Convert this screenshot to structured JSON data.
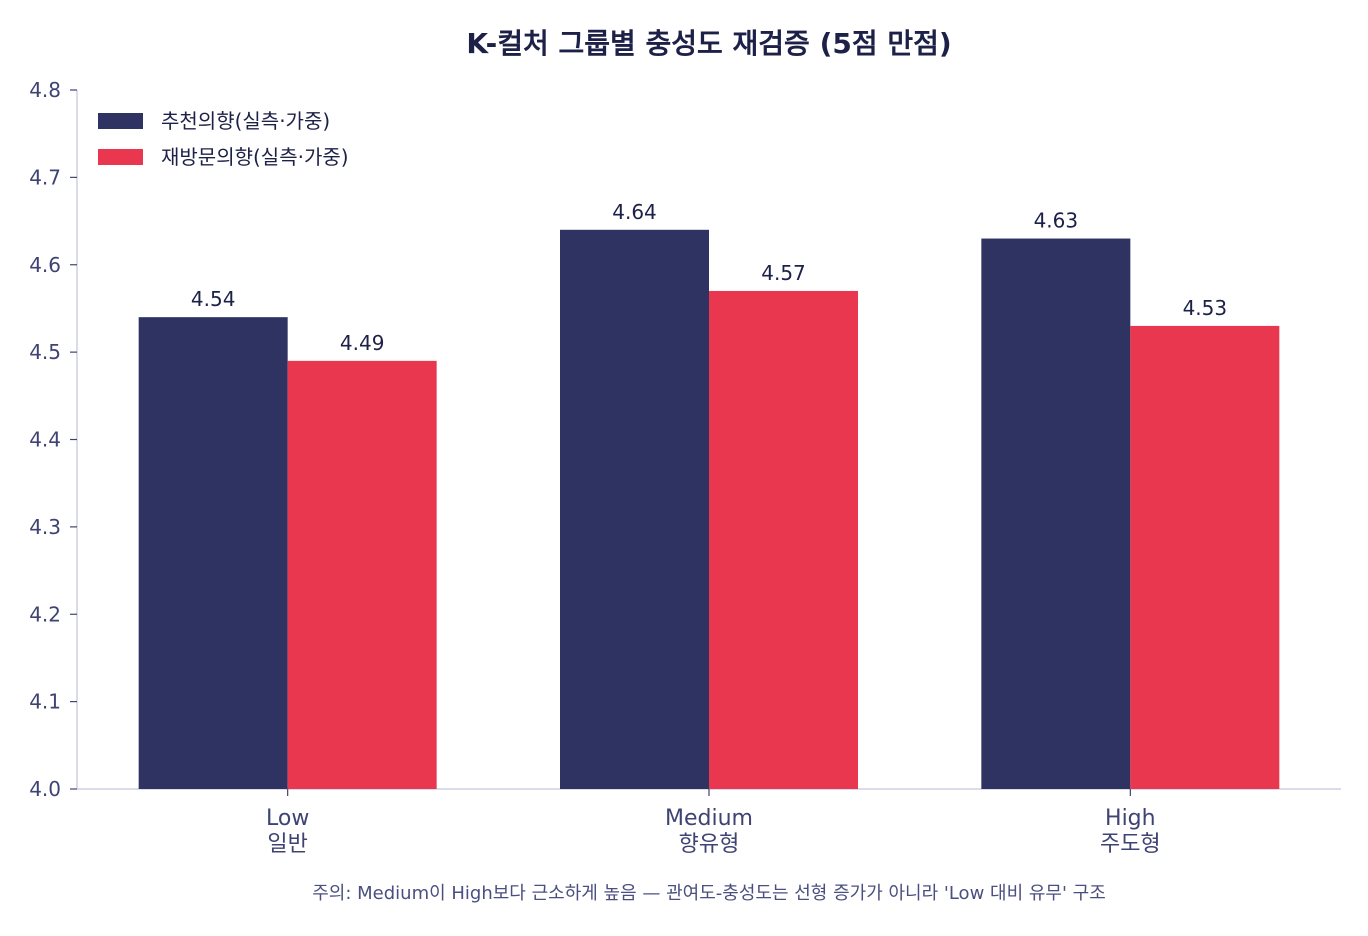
{
  "chart_data": {
    "type": "bar",
    "title": "K-컬처 그룹별 충성도 재검증 (5점 만점)",
    "categories": [
      {
        "en": "Low",
        "ko": "일반"
      },
      {
        "en": "Medium",
        "ko": "향유형"
      },
      {
        "en": "High",
        "ko": "주도형"
      }
    ],
    "series": [
      {
        "name": "추천의향(실측·가중)",
        "color": "#2e3362",
        "values": [
          4.54,
          4.64,
          4.63
        ],
        "labels": [
          "4.54",
          "4.64",
          "4.63"
        ]
      },
      {
        "name": "재방문의향(실측·가중)",
        "color": "#e8374e",
        "values": [
          4.49,
          4.57,
          4.53
        ],
        "labels": [
          "4.49",
          "4.57",
          "4.53"
        ]
      }
    ],
    "ylim": [
      4.0,
      4.8
    ],
    "yticks": [
      "4.0",
      "4.1",
      "4.2",
      "4.3",
      "4.4",
      "4.5",
      "4.6",
      "4.7",
      "4.8"
    ],
    "xlabel": "",
    "ylabel": "",
    "legend_position": "top-left",
    "grid": false,
    "note": "주의: Medium이 High보다 근소하게 높음 — 관여도-충성도는 선형 증가가 아니라 'Low 대비 유무' 구조"
  }
}
